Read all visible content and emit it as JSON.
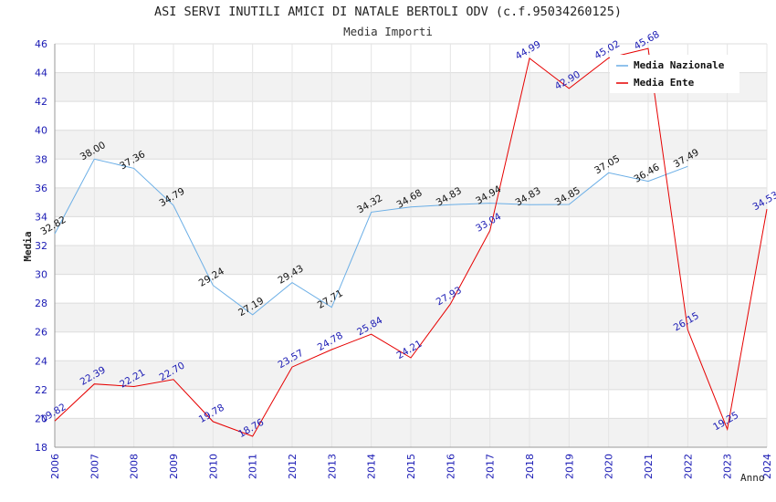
{
  "chart_data": {
    "type": "line",
    "title": "ASI SERVI INUTILI AMICI DI NATALE BERTOLI ODV (c.f.95034260125)",
    "subtitle": "Media Importi",
    "xlabel": "Anno",
    "ylabel": "Media",
    "ylim": [
      18,
      46
    ],
    "yticks": [
      18,
      20,
      22,
      24,
      26,
      28,
      30,
      32,
      34,
      36,
      38,
      40,
      42,
      44,
      46
    ],
    "x": [
      2006,
      2007,
      2008,
      2009,
      2010,
      2011,
      2012,
      2013,
      2014,
      2015,
      2016,
      2017,
      2018,
      2019,
      2020,
      2021,
      2022,
      2023,
      2024
    ],
    "legend_position": "top-right",
    "grid": true,
    "series": [
      {
        "name": "Media Nazionale",
        "color": "#6aaee6",
        "label_color": "#111111",
        "x": [
          2006,
          2007,
          2008,
          2009,
          2010,
          2011,
          2012,
          2013,
          2014,
          2015,
          2016,
          2017,
          2018,
          2019,
          2020,
          2021,
          2022
        ],
        "values": [
          32.82,
          38.0,
          37.36,
          34.79,
          29.24,
          27.19,
          29.43,
          27.71,
          34.32,
          34.68,
          34.83,
          34.94,
          34.83,
          34.85,
          37.05,
          36.46,
          37.49
        ],
        "labels": [
          "32.82",
          "38.00",
          "37.36",
          "34.79",
          "29.24",
          "27.19",
          "29.43",
          "27.71",
          "34.32",
          "34.68",
          "34.83",
          "34.94",
          "34.83",
          "34.85",
          "37.05",
          "36.46",
          "37.49"
        ]
      },
      {
        "name": "Media Ente",
        "color": "#e60000",
        "label_color": "#1a1ab4",
        "x": [
          2006,
          2007,
          2008,
          2009,
          2010,
          2011,
          2012,
          2013,
          2014,
          2015,
          2016,
          2017,
          2018,
          2019,
          2020,
          2021,
          2022,
          2023,
          2024
        ],
        "values": [
          19.82,
          22.39,
          22.21,
          22.7,
          19.78,
          18.76,
          23.57,
          24.78,
          25.84,
          24.21,
          27.93,
          33.04,
          44.99,
          42.9,
          45.02,
          45.68,
          26.15,
          19.25,
          34.53
        ],
        "labels": [
          "19.82",
          "22.39",
          "22.21",
          "22.70",
          "19.78",
          "18.76",
          "23.57",
          "24.78",
          "25.84",
          "24.21",
          "27.93",
          "33.04",
          "44.99",
          "42.90",
          "45.02",
          "45.68",
          "26.15",
          "19.25",
          "34.53"
        ]
      }
    ]
  }
}
